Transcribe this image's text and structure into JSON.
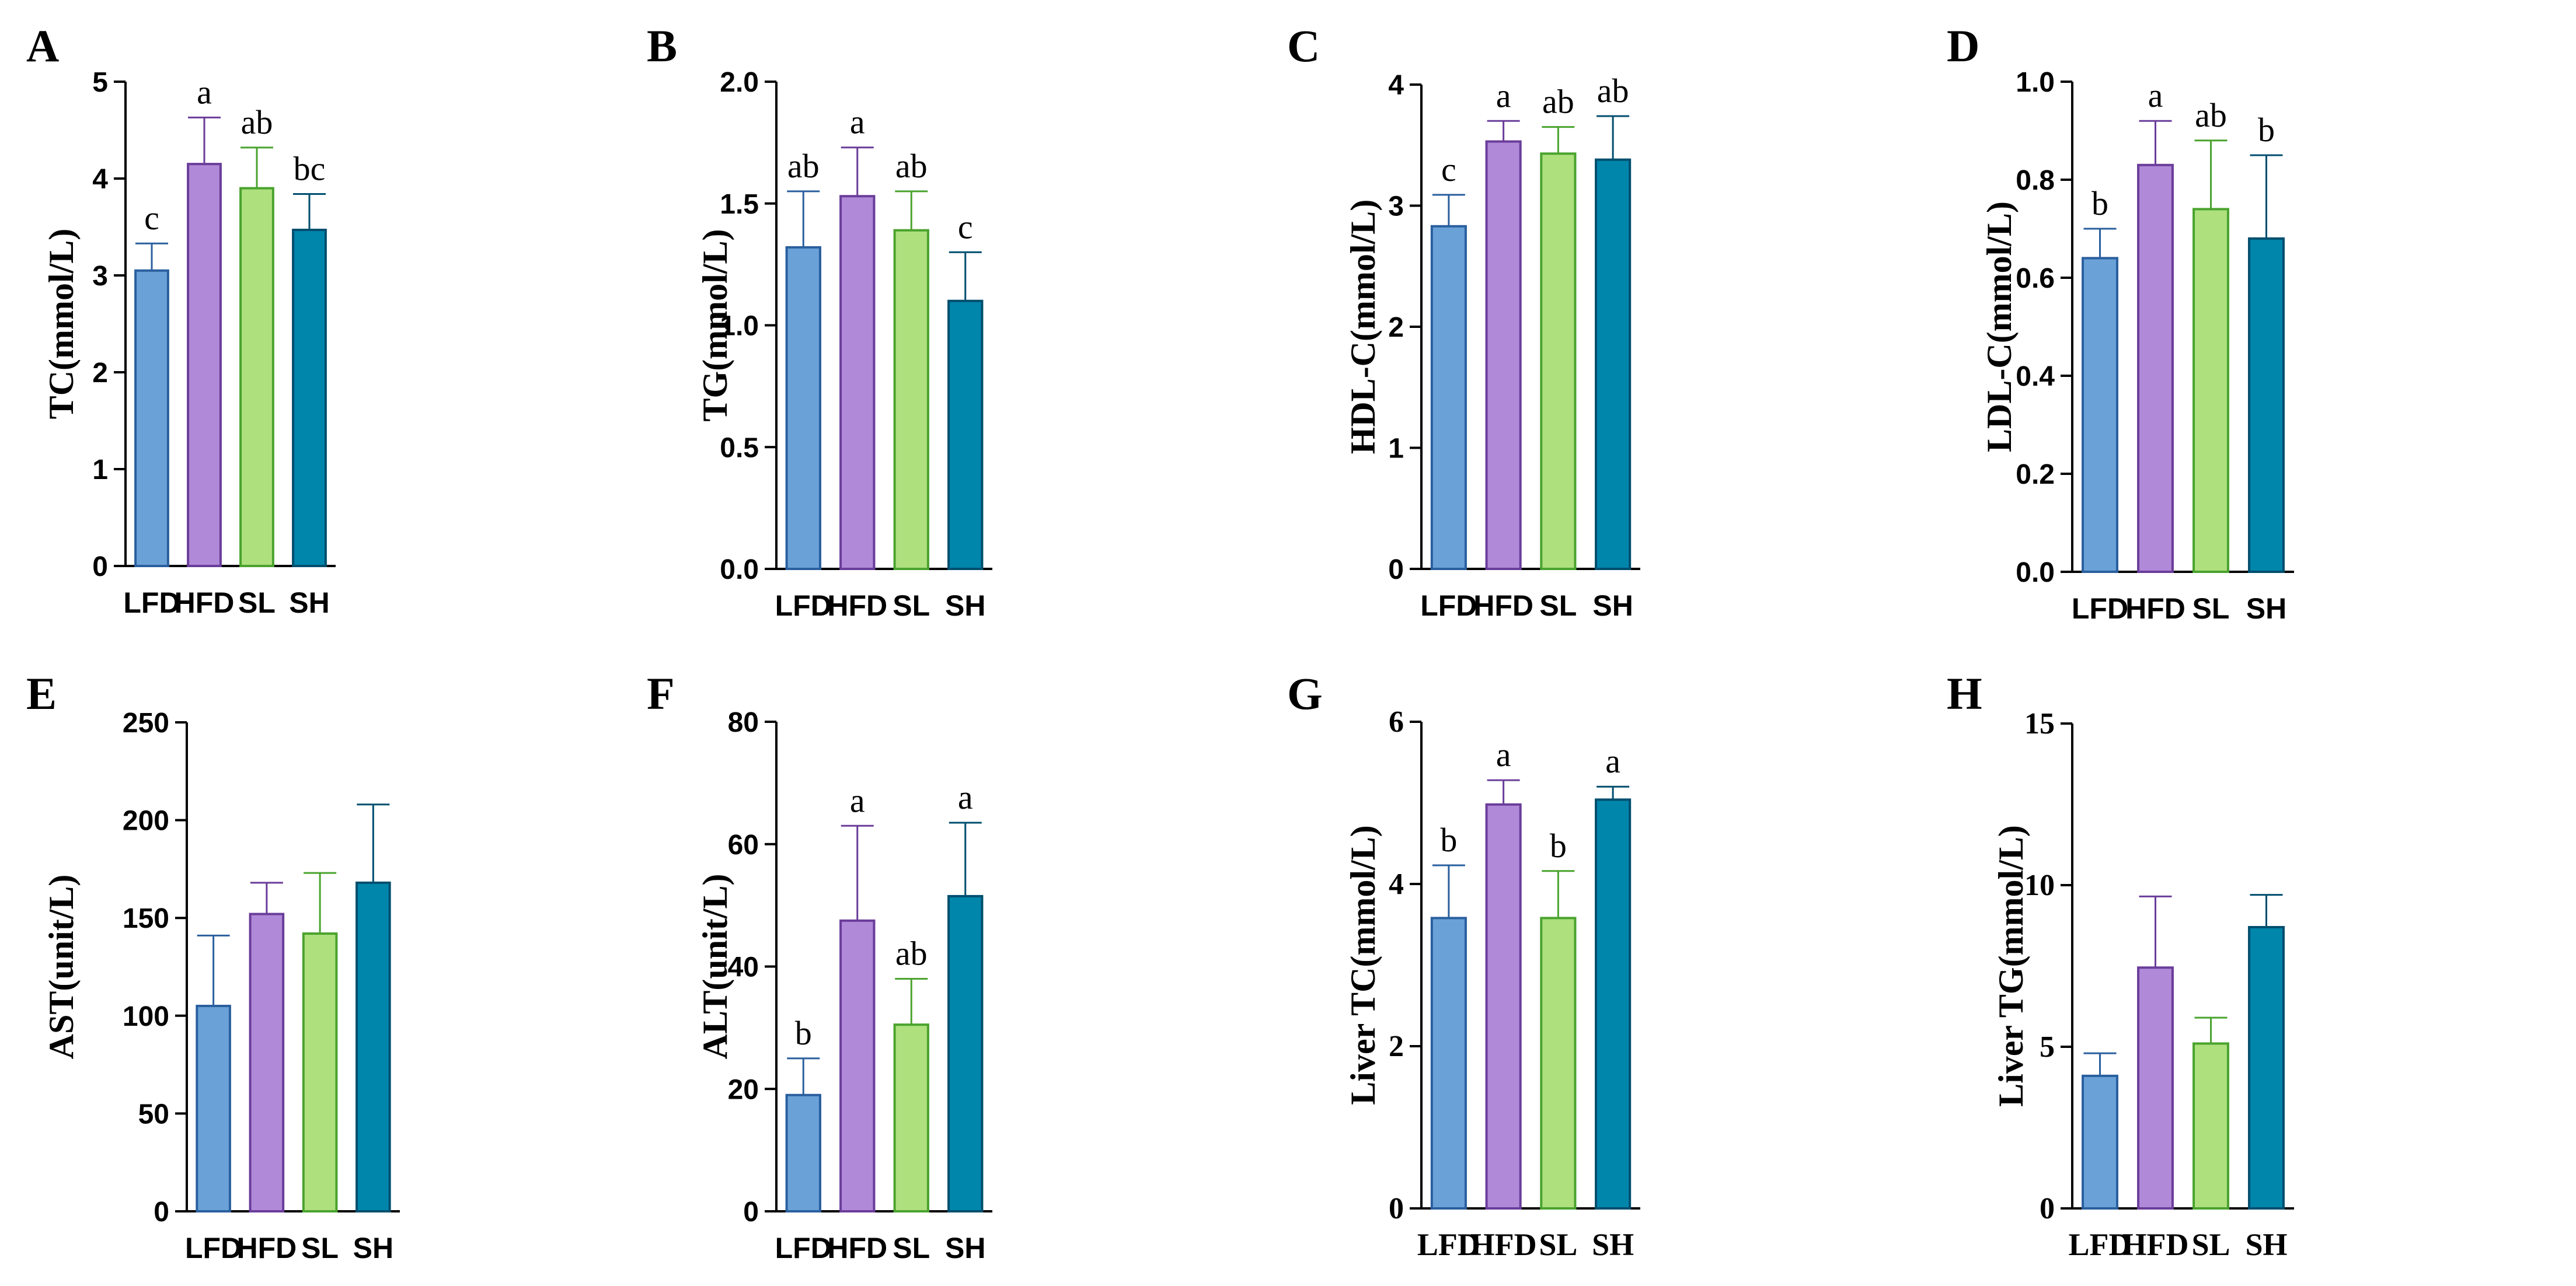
{
  "colors": {
    "LFD": {
      "fill": "#6aa2d8",
      "stroke": "#2a5f9e"
    },
    "HFD": {
      "fill": "#b08ad8",
      "stroke": "#6a3d9a"
    },
    "SL": {
      "fill": "#aee07e",
      "stroke": "#4aa32e"
    },
    "SH": {
      "fill": "#0085ab",
      "stroke": "#004e6e"
    },
    "axis": "#000000"
  },
  "chart_data": [
    {
      "panel": "A",
      "type": "bar",
      "ylabel": "TC(mmol/L)",
      "ylim": [
        0,
        5
      ],
      "yticks": [
        "0",
        "1",
        "2",
        "3",
        "4",
        "5"
      ],
      "tick_font": "sans",
      "cat_font": "sans",
      "categories": [
        "LFD",
        "HFD",
        "SL",
        "SH"
      ],
      "values": [
        3.05,
        4.15,
        3.9,
        3.47
      ],
      "errors": [
        0.28,
        0.48,
        0.42,
        0.37
      ],
      "sig": [
        "c",
        "a",
        "ab",
        "bc"
      ]
    },
    {
      "panel": "B",
      "type": "bar",
      "ylabel": "TG(mmol/L)",
      "ylim": [
        0,
        2.0
      ],
      "yticks": [
        "0.0",
        "0.5",
        "1.0",
        "1.5",
        "2.0"
      ],
      "tick_font": "sans",
      "cat_font": "sans",
      "categories": [
        "LFD",
        "HFD",
        "SL",
        "SH"
      ],
      "values": [
        1.32,
        1.53,
        1.39,
        1.1
      ],
      "errors": [
        0.23,
        0.2,
        0.16,
        0.2
      ],
      "sig": [
        "ab",
        "a",
        "ab",
        "c"
      ]
    },
    {
      "panel": "C",
      "type": "bar",
      "ylabel": "HDL-C(mmol/L)",
      "ylim": [
        0,
        4
      ],
      "yticks": [
        "0",
        "1",
        "2",
        "3",
        "4"
      ],
      "tick_font": "sans",
      "cat_font": "sans",
      "categories": [
        "LFD",
        "HFD",
        "SL",
        "SH"
      ],
      "values": [
        2.83,
        3.53,
        3.43,
        3.38
      ],
      "errors": [
        0.26,
        0.17,
        0.22,
        0.36
      ],
      "sig": [
        "c",
        "a",
        "ab",
        "ab"
      ]
    },
    {
      "panel": "D",
      "type": "bar",
      "ylabel": "LDL-C(mmol/L)",
      "ylim": [
        0,
        1.0
      ],
      "yticks": [
        "0.0",
        "0.2",
        "0.4",
        "0.6",
        "0.8",
        "1.0"
      ],
      "tick_font": "sans",
      "cat_font": "sans",
      "categories": [
        "LFD",
        "HFD",
        "SL",
        "SH"
      ],
      "values": [
        0.64,
        0.83,
        0.74,
        0.68
      ],
      "errors": [
        0.06,
        0.09,
        0.14,
        0.17
      ],
      "sig": [
        "b",
        "a",
        "ab",
        "b"
      ]
    },
    {
      "panel": "E",
      "type": "bar",
      "ylabel": "AST(unit/L)",
      "ylim": [
        0,
        250
      ],
      "yticks": [
        "0",
        "50",
        "100",
        "150",
        "200",
        "250"
      ],
      "tick_font": "sans",
      "cat_font": "sans",
      "categories": [
        "LFD",
        "HFD",
        "SL",
        "SH"
      ],
      "values": [
        105,
        152,
        142,
        168
      ],
      "errors": [
        36,
        16,
        31,
        40
      ],
      "sig": [
        "",
        "",
        "",
        ""
      ]
    },
    {
      "panel": "F",
      "type": "bar",
      "ylabel": "ALT(unit/L)",
      "ylim": [
        0,
        80
      ],
      "yticks": [
        "0",
        "20",
        "40",
        "60",
        "80"
      ],
      "tick_font": "sans",
      "cat_font": "sans",
      "categories": [
        "LFD",
        "HFD",
        "SL",
        "SH"
      ],
      "values": [
        19,
        47.5,
        30.5,
        51.5
      ],
      "errors": [
        6,
        15.5,
        7.5,
        12
      ],
      "sig": [
        "b",
        "a",
        "ab",
        "a"
      ]
    },
    {
      "panel": "G",
      "type": "bar",
      "ylabel": "Liver TC(mmol/L)",
      "ylim": [
        0,
        6
      ],
      "yticks": [
        "0",
        "2",
        "4",
        "6"
      ],
      "tick_font": "serif",
      "cat_font": "serif",
      "categories": [
        "LFD",
        "HFD",
        "SL",
        "SH"
      ],
      "values": [
        3.58,
        4.98,
        3.58,
        5.04
      ],
      "errors": [
        0.65,
        0.3,
        0.58,
        0.16
      ],
      "sig": [
        "b",
        "a",
        "b",
        "a"
      ]
    },
    {
      "panel": "H",
      "type": "bar",
      "ylabel": "Liver TG(mmol/L)",
      "ylim": [
        0,
        15
      ],
      "yticks": [
        "0",
        "5",
        "10",
        "15"
      ],
      "tick_font": "serif",
      "cat_font": "serif",
      "categories": [
        "LFD",
        "HFD",
        "SL",
        "SH"
      ],
      "values": [
        4.1,
        7.45,
        5.1,
        8.7
      ],
      "errors": [
        0.7,
        2.2,
        0.8,
        1.0
      ],
      "sig": [
        "",
        "",
        "",
        ""
      ]
    }
  ]
}
